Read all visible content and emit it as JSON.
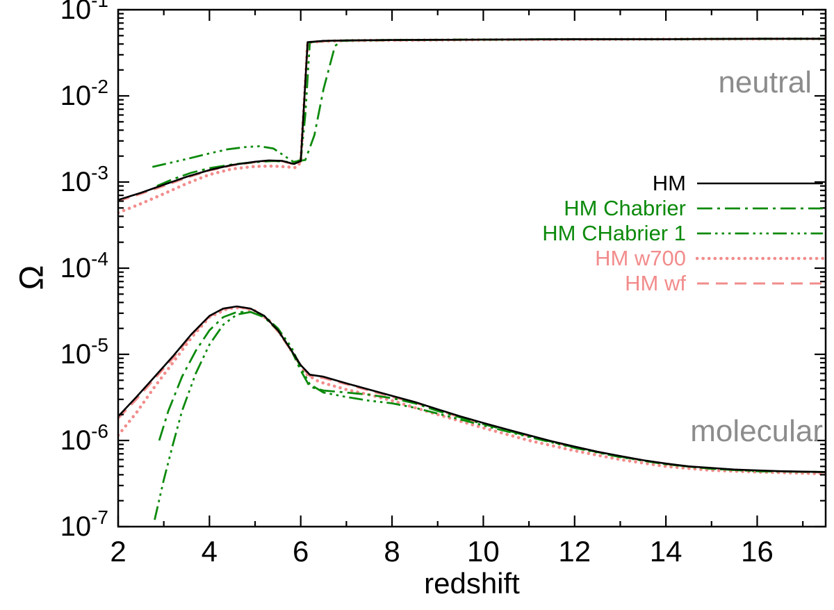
{
  "chart_data": {
    "type": "line",
    "title": "",
    "xlabel": "redshift",
    "ylabel": "Ω",
    "x_range": [
      2,
      17.5
    ],
    "y_range": [
      1e-07,
      0.1
    ],
    "y_scale": "log",
    "x_ticks": [
      2,
      4,
      6,
      8,
      10,
      12,
      14,
      16
    ],
    "y_tick_exponents": [
      -1,
      -2,
      -3,
      -4,
      -5,
      -6,
      -7
    ],
    "grid": false,
    "legend_position": "right-center",
    "annotations": [
      {
        "text": "neutral",
        "color": "#8c8c8c"
      },
      {
        "text": "molecular",
        "color": "#8c8c8c"
      }
    ],
    "series": [
      {
        "name": "HM",
        "color": "#000000",
        "style": "solid",
        "branches": {
          "neutral": [
            [
              2,
              0.00062
            ],
            [
              2.5,
              0.00075
            ],
            [
              3,
              0.00093
            ],
            [
              3.5,
              0.00115
            ],
            [
              4,
              0.00138
            ],
            [
              4.5,
              0.00158
            ],
            [
              5,
              0.00172
            ],
            [
              5.3,
              0.00178
            ],
            [
              5.6,
              0.00176
            ],
            [
              5.85,
              0.00162
            ],
            [
              6.0,
              0.00175
            ],
            [
              6.05,
              0.005
            ],
            [
              6.15,
              0.042
            ],
            [
              6.5,
              0.0435
            ],
            [
              7,
              0.044
            ],
            [
              8,
              0.0445
            ],
            [
              10,
              0.045
            ],
            [
              12,
              0.0455
            ],
            [
              14,
              0.0455
            ],
            [
              16,
              0.046
            ],
            [
              17.5,
              0.046
            ]
          ],
          "molecular": [
            [
              2,
              1.9e-06
            ],
            [
              2.4,
              3.2e-06
            ],
            [
              2.8,
              5.5e-06
            ],
            [
              3.2,
              9.5e-06
            ],
            [
              3.6,
              1.7e-05
            ],
            [
              4,
              2.8e-05
            ],
            [
              4.3,
              3.4e-05
            ],
            [
              4.6,
              3.6e-05
            ],
            [
              4.9,
              3.4e-05
            ],
            [
              5.2,
              2.8e-05
            ],
            [
              5.5,
              1.9e-05
            ],
            [
              5.8,
              1.1e-05
            ],
            [
              6.0,
              7.5e-06
            ],
            [
              6.2,
              5.8e-06
            ],
            [
              6.5,
              5.5e-06
            ],
            [
              7,
              4.6e-06
            ],
            [
              7.5,
              3.9e-06
            ],
            [
              8,
              3.3e-06
            ],
            [
              8.5,
              2.8e-06
            ],
            [
              9,
              2.3e-06
            ],
            [
              9.5,
              1.9e-06
            ],
            [
              10,
              1.6e-06
            ],
            [
              10.5,
              1.35e-06
            ],
            [
              11,
              1.15e-06
            ],
            [
              11.5,
              9.8e-07
            ],
            [
              12,
              8.5e-07
            ],
            [
              12.5,
              7.4e-07
            ],
            [
              13,
              6.6e-07
            ],
            [
              13.5,
              5.9e-07
            ],
            [
              14,
              5.4e-07
            ],
            [
              14.5,
              5e-07
            ],
            [
              15,
              4.8e-07
            ],
            [
              15.5,
              4.6e-07
            ],
            [
              16,
              4.5e-07
            ],
            [
              16.5,
              4.4e-07
            ],
            [
              17,
              4.35e-07
            ],
            [
              17.5,
              4.3e-07
            ]
          ]
        }
      },
      {
        "name": "HM Chabrier",
        "color": "#0c8a0c",
        "style": "dashdot",
        "branches": {
          "neutral": [
            [
              2.85,
              0.0009
            ],
            [
              3.2,
              0.00108
            ],
            [
              3.6,
              0.00128
            ],
            [
              4,
              0.00145
            ],
            [
              4.5,
              0.0016
            ],
            [
              5,
              0.0017
            ],
            [
              5.4,
              0.00176
            ],
            [
              5.8,
              0.0017
            ],
            [
              6.1,
              0.0018
            ],
            [
              6.3,
              0.0035
            ],
            [
              6.5,
              0.012
            ],
            [
              6.75,
              0.038
            ],
            [
              6.9,
              0.0435
            ],
            [
              7.2,
              0.044
            ],
            [
              8,
              0.0445
            ],
            [
              10,
              0.045
            ],
            [
              12,
              0.0455
            ],
            [
              14,
              0.0455
            ],
            [
              16,
              0.046
            ],
            [
              17.5,
              0.046
            ]
          ],
          "molecular": [
            [
              2.9,
              1e-06
            ],
            [
              3.1,
              2.2e-06
            ],
            [
              3.4,
              5.5e-06
            ],
            [
              3.7,
              1.1e-05
            ],
            [
              4,
              1.9e-05
            ],
            [
              4.3,
              2.7e-05
            ],
            [
              4.6,
              3.1e-05
            ],
            [
              4.9,
              3.1e-05
            ],
            [
              5.2,
              2.7e-05
            ],
            [
              5.5,
              1.9e-05
            ],
            [
              5.8,
              1.1e-05
            ],
            [
              6.0,
              6.5e-06
            ],
            [
              6.2,
              4.2e-06
            ],
            [
              6.5,
              3.8e-06
            ],
            [
              7,
              3.6e-06
            ],
            [
              7.5,
              3.4e-06
            ],
            [
              8,
              3.1e-06
            ],
            [
              8.5,
              2.7e-06
            ],
            [
              9,
              2.2e-06
            ],
            [
              9.5,
              1.85e-06
            ],
            [
              10,
              1.55e-06
            ],
            [
              11,
              1.12e-06
            ],
            [
              12,
              8.3e-07
            ],
            [
              13,
              6.5e-07
            ],
            [
              14,
              5.3e-07
            ],
            [
              15,
              4.7e-07
            ],
            [
              16,
              4.4e-07
            ],
            [
              17.5,
              4.3e-07
            ]
          ]
        }
      },
      {
        "name": "HM CHabrier 1",
        "color": "#0c8a0c",
        "style": "dashdotdotdot",
        "branches": {
          "neutral": [
            [
              2.75,
              0.0015
            ],
            [
              3.1,
              0.00165
            ],
            [
              3.5,
              0.00185
            ],
            [
              4,
              0.00215
            ],
            [
              4.4,
              0.0024
            ],
            [
              4.8,
              0.00255
            ],
            [
              5.1,
              0.0026
            ],
            [
              5.4,
              0.00245
            ],
            [
              5.65,
              0.002
            ],
            [
              5.85,
              0.0017
            ],
            [
              6.0,
              0.0018
            ],
            [
              6.1,
              0.006
            ],
            [
              6.2,
              0.042
            ],
            [
              6.6,
              0.0435
            ],
            [
              7,
              0.044
            ],
            [
              8,
              0.0445
            ],
            [
              10,
              0.045
            ],
            [
              12,
              0.0455
            ],
            [
              14,
              0.0455
            ],
            [
              16,
              0.046
            ],
            [
              17.5,
              0.046
            ]
          ],
          "molecular": [
            [
              2.8,
              1.2e-07
            ],
            [
              3.0,
              3.5e-07
            ],
            [
              3.2,
              9e-07
            ],
            [
              3.4,
              2.2e-06
            ],
            [
              3.7,
              6e-06
            ],
            [
              4,
              1.3e-05
            ],
            [
              4.3,
              2.2e-05
            ],
            [
              4.6,
              2.9e-05
            ],
            [
              4.9,
              3.1e-05
            ],
            [
              5.2,
              2.8e-05
            ],
            [
              5.5,
              2e-05
            ],
            [
              5.8,
              1.2e-05
            ],
            [
              6.0,
              7e-06
            ],
            [
              6.2,
              4.5e-06
            ],
            [
              6.5,
              3.6e-06
            ],
            [
              7,
              3.2e-06
            ],
            [
              7.5,
              2.9e-06
            ],
            [
              8,
              2.7e-06
            ],
            [
              8.5,
              2.4e-06
            ],
            [
              9,
              2.05e-06
            ],
            [
              9.5,
              1.75e-06
            ],
            [
              10,
              1.5e-06
            ],
            [
              10.5,
              1.28e-06
            ],
            [
              11,
              1.1e-06
            ],
            [
              12,
              8.2e-07
            ],
            [
              13,
              6.4e-07
            ],
            [
              14,
              5.3e-07
            ],
            [
              15,
              4.7e-07
            ],
            [
              16,
              4.4e-07
            ],
            [
              17.5,
              4.3e-07
            ]
          ]
        }
      },
      {
        "name": "HM w700",
        "color": "#f28c8c",
        "style": "dotted",
        "branches": {
          "neutral": [
            [
              2,
              0.00044
            ],
            [
              2.5,
              0.00056
            ],
            [
              3,
              0.00073
            ],
            [
              3.5,
              0.00096
            ],
            [
              4,
              0.00122
            ],
            [
              4.5,
              0.00142
            ],
            [
              5,
              0.00152
            ],
            [
              5.4,
              0.00153
            ],
            [
              5.7,
              0.0015
            ],
            [
              5.9,
              0.00147
            ],
            [
              6.0,
              0.0017
            ],
            [
              6.05,
              0.005
            ],
            [
              6.15,
              0.0415
            ],
            [
              6.5,
              0.043
            ],
            [
              7,
              0.0438
            ],
            [
              8,
              0.0442
            ],
            [
              10,
              0.0448
            ],
            [
              12,
              0.0452
            ],
            [
              14,
              0.0455
            ],
            [
              16,
              0.0458
            ],
            [
              17.5,
              0.046
            ]
          ],
          "molecular": [
            [
              2,
              1.15e-06
            ],
            [
              2.4,
              2.1e-06
            ],
            [
              2.8,
              4.2e-06
            ],
            [
              3.2,
              8e-06
            ],
            [
              3.6,
              1.55e-05
            ],
            [
              4,
              2.7e-05
            ],
            [
              4.4,
              3.4e-05
            ],
            [
              4.7,
              3.5e-05
            ],
            [
              5,
              3.2e-05
            ],
            [
              5.3,
              2.5e-05
            ],
            [
              5.6,
              1.6e-05
            ],
            [
              5.9,
              9e-06
            ],
            [
              6.1,
              6e-06
            ],
            [
              6.4,
              4.8e-06
            ],
            [
              7,
              3.9e-06
            ],
            [
              7.5,
              3.4e-06
            ],
            [
              8,
              2.9e-06
            ],
            [
              9,
              2e-06
            ],
            [
              10,
              1.4e-06
            ],
            [
              11,
              1e-06
            ],
            [
              12,
              7.6e-07
            ],
            [
              13,
              6e-07
            ],
            [
              14,
              5e-07
            ],
            [
              15,
              4.5e-07
            ],
            [
              16,
              4.3e-07
            ],
            [
              17.5,
              4.1e-07
            ]
          ]
        }
      },
      {
        "name": "HM wf",
        "color": "#f28c8c",
        "style": "dashed",
        "branches": {
          "neutral": [
            [
              2,
              0.0006
            ],
            [
              2.5,
              0.00073
            ],
            [
              3,
              0.0009
            ],
            [
              3.5,
              0.00112
            ],
            [
              4,
              0.00136
            ],
            [
              4.5,
              0.00156
            ],
            [
              5,
              0.0017
            ],
            [
              5.3,
              0.00176
            ],
            [
              5.6,
              0.00174
            ],
            [
              5.85,
              0.0016
            ],
            [
              6.0,
              0.00172
            ],
            [
              6.05,
              0.005
            ],
            [
              6.15,
              0.0415
            ],
            [
              6.5,
              0.043
            ],
            [
              7,
              0.0438
            ],
            [
              8,
              0.0442
            ],
            [
              10,
              0.0448
            ],
            [
              12,
              0.0452
            ],
            [
              14,
              0.0455
            ],
            [
              16,
              0.0458
            ],
            [
              17.5,
              0.046
            ]
          ],
          "molecular": [
            [
              2,
              1.8e-06
            ],
            [
              2.4,
              3e-06
            ],
            [
              2.8,
              5.2e-06
            ],
            [
              3.2,
              9e-06
            ],
            [
              3.6,
              1.65e-05
            ],
            [
              4,
              2.75e-05
            ],
            [
              4.3,
              3.35e-05
            ],
            [
              4.6,
              3.55e-05
            ],
            [
              4.9,
              3.35e-05
            ],
            [
              5.2,
              2.75e-05
            ],
            [
              5.5,
              1.85e-05
            ],
            [
              5.8,
              1.08e-05
            ],
            [
              6.0,
              7.3e-06
            ],
            [
              6.2,
              5.6e-06
            ],
            [
              6.5,
              5.3e-06
            ],
            [
              7,
              4.5e-06
            ],
            [
              7.5,
              3.8e-06
            ],
            [
              8,
              3.2e-06
            ],
            [
              8.5,
              2.75e-06
            ],
            [
              9,
              2.25e-06
            ],
            [
              9.5,
              1.85e-06
            ],
            [
              10,
              1.55e-06
            ],
            [
              11,
              1.12e-06
            ],
            [
              12,
              8.3e-07
            ],
            [
              13,
              6.5e-07
            ],
            [
              14,
              5.3e-07
            ],
            [
              15,
              4.7e-07
            ],
            [
              16,
              4.45e-07
            ],
            [
              17,
              4.3e-07
            ],
            [
              17.5,
              4.25e-07
            ]
          ]
        }
      }
    ]
  }
}
